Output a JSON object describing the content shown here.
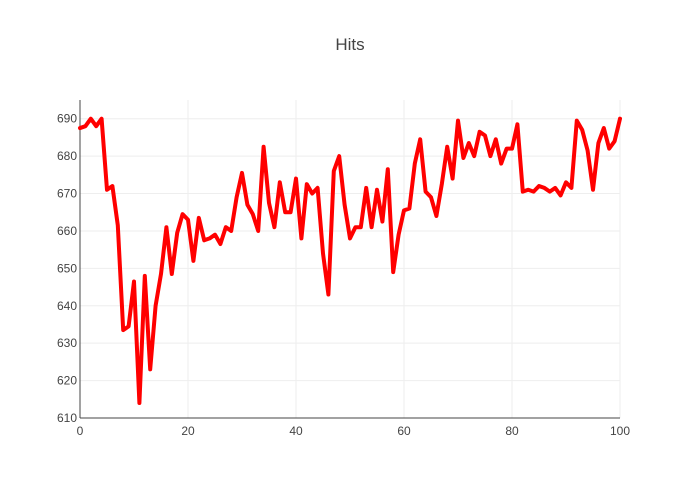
{
  "chart_data": {
    "type": "line",
    "title": "Hits",
    "xlabel": "",
    "ylabel": "",
    "xlim": [
      0,
      100
    ],
    "ylim": [
      610,
      695
    ],
    "x_ticks": [
      0,
      20,
      40,
      60,
      80,
      100
    ],
    "y_ticks": [
      610,
      620,
      630,
      640,
      650,
      660,
      670,
      680,
      690
    ],
    "grid": true,
    "legend": "none",
    "series": [
      {
        "color": "#ff0000",
        "x": [
          0,
          1,
          2,
          3,
          4,
          5,
          6,
          7,
          8,
          9,
          10,
          11,
          12,
          13,
          14,
          15,
          16,
          17,
          18,
          19,
          20,
          21,
          22,
          23,
          24,
          25,
          26,
          27,
          28,
          29,
          30,
          31,
          32,
          33,
          34,
          35,
          36,
          37,
          38,
          39,
          40,
          41,
          42,
          43,
          44,
          45,
          46,
          47,
          48,
          49,
          50,
          51,
          52,
          53,
          54,
          55,
          56,
          57,
          58,
          59,
          60,
          61,
          62,
          63,
          64,
          65,
          66,
          67,
          68,
          69,
          70,
          71,
          72,
          73,
          74,
          75,
          76,
          77,
          78,
          79,
          80,
          81,
          82,
          83,
          84,
          85,
          86,
          87,
          88,
          89,
          90,
          91,
          92,
          93,
          94,
          95,
          96,
          97,
          98,
          99,
          100
        ],
        "y": [
          687.5,
          688,
          690,
          688,
          690,
          671,
          672,
          661.5,
          633.5,
          634.5,
          646.5,
          614,
          648,
          623,
          640,
          648.5,
          661,
          648.5,
          659.5,
          664.5,
          663,
          652,
          663.5,
          657.5,
          658,
          659,
          656.5,
          661,
          660,
          669,
          675.5,
          667,
          664.5,
          660,
          682.5,
          667.5,
          661,
          673,
          665,
          665,
          674,
          658,
          672.5,
          670,
          671.5,
          654,
          643,
          676,
          680,
          667,
          658,
          661,
          661,
          671.5,
          661,
          671,
          662.5,
          676.5,
          649,
          659,
          665.5,
          666,
          678,
          684.5,
          670.5,
          669,
          664,
          672.5,
          682.5,
          674,
          689.5,
          679.5,
          683.5,
          680,
          686.5,
          685.5,
          680,
          684.5,
          678,
          682,
          682,
          688.5,
          670.5,
          671,
          670.5,
          672,
          671.5,
          670.5,
          671.5,
          669.5,
          673,
          671.5,
          689.5,
          687,
          681.5,
          671,
          683.5,
          687.5,
          682,
          684,
          690
        ]
      }
    ]
  }
}
